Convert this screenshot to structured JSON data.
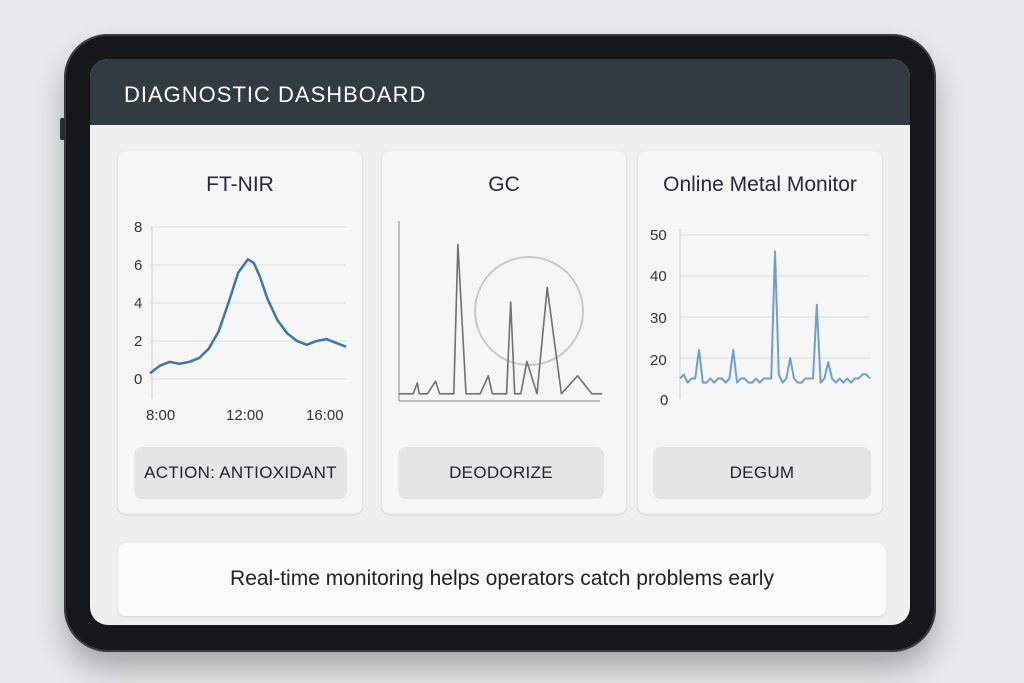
{
  "header": {
    "title": "DIAGNOSTIC DASHBOARD"
  },
  "colors": {
    "header_bg": "#343a42",
    "ftnir_line": "#3b76ad",
    "gc_line": "#707070",
    "metal_line": "#6f9fcc"
  },
  "cards": [
    {
      "title": "FT-NIR",
      "button_label": "ACTION: ANTIOXIDANT",
      "y_ticks": [
        "8",
        "6",
        "4",
        "2",
        "0"
      ],
      "x_ticks": [
        "8:00",
        "12:00",
        "16:00"
      ]
    },
    {
      "title": "GC",
      "button_label": "DEODORIZE"
    },
    {
      "title": "Online Metal Monitor",
      "button_label": "DEGUM",
      "y_ticks": [
        "50",
        "40",
        "30",
        "20",
        "0"
      ]
    }
  ],
  "chart_data": [
    {
      "type": "line",
      "title": "FT-NIR",
      "x_ticks": [
        "8:00",
        "12:00",
        "16:00"
      ],
      "ylim": [
        0,
        8
      ],
      "grid": true,
      "x": [
        7.0,
        7.5,
        8.0,
        8.5,
        9.0,
        9.5,
        10.0,
        10.5,
        11.0,
        11.5,
        12.0,
        12.3,
        12.6,
        13.0,
        13.5,
        14.0,
        14.5,
        15.0,
        15.5,
        16.0,
        16.5,
        17.0
      ],
      "y": [
        0.3,
        0.7,
        0.9,
        0.8,
        0.9,
        1.1,
        1.6,
        2.5,
        4.0,
        5.6,
        6.3,
        6.1,
        5.4,
        4.2,
        3.1,
        2.4,
        2.0,
        1.8,
        2.0,
        2.1,
        1.9,
        1.7
      ]
    },
    {
      "type": "line",
      "title": "GC",
      "x": [
        0,
        4,
        7,
        9,
        10,
        12,
        14,
        18,
        20,
        23,
        27,
        29,
        33,
        36,
        40,
        44,
        46,
        48,
        50,
        53,
        55,
        57,
        60,
        63,
        68,
        73,
        80,
        88,
        95,
        100
      ],
      "y": [
        4,
        4,
        4,
        10,
        4,
        4,
        4,
        11,
        4,
        4,
        4,
        87,
        4,
        4,
        4,
        14,
        4,
        4,
        4,
        4,
        55,
        4,
        4,
        22,
        4,
        63,
        4,
        14,
        4,
        4
      ],
      "annotation": "circle"
    },
    {
      "type": "line",
      "title": "Online Metal Monitor",
      "ylim": [
        0,
        50
      ],
      "grid": true,
      "x": [
        0,
        2,
        4,
        6,
        8,
        10,
        12,
        14,
        16,
        18,
        20,
        22,
        24,
        26,
        28,
        30,
        32,
        34,
        36,
        38,
        40,
        42,
        44,
        46,
        48,
        50,
        52,
        54,
        56,
        58,
        60,
        62,
        64,
        66,
        68,
        70,
        72,
        74,
        76,
        78,
        80,
        82,
        84,
        86,
        88,
        90,
        92,
        94,
        96,
        98,
        100
      ],
      "y": [
        15,
        16,
        14,
        15,
        15,
        22,
        14,
        14,
        15,
        14,
        15,
        15,
        14,
        15,
        22,
        14,
        15,
        15,
        14,
        14,
        15,
        14,
        15,
        15,
        15,
        46,
        16,
        14,
        15,
        20,
        15,
        14,
        14,
        15,
        15,
        15,
        33,
        14,
        15,
        19,
        15,
        14,
        15,
        14,
        15,
        14,
        15,
        15,
        16,
        16,
        15
      ]
    }
  ],
  "footer": {
    "text": "Real-time monitoring helps operators catch problems early"
  }
}
